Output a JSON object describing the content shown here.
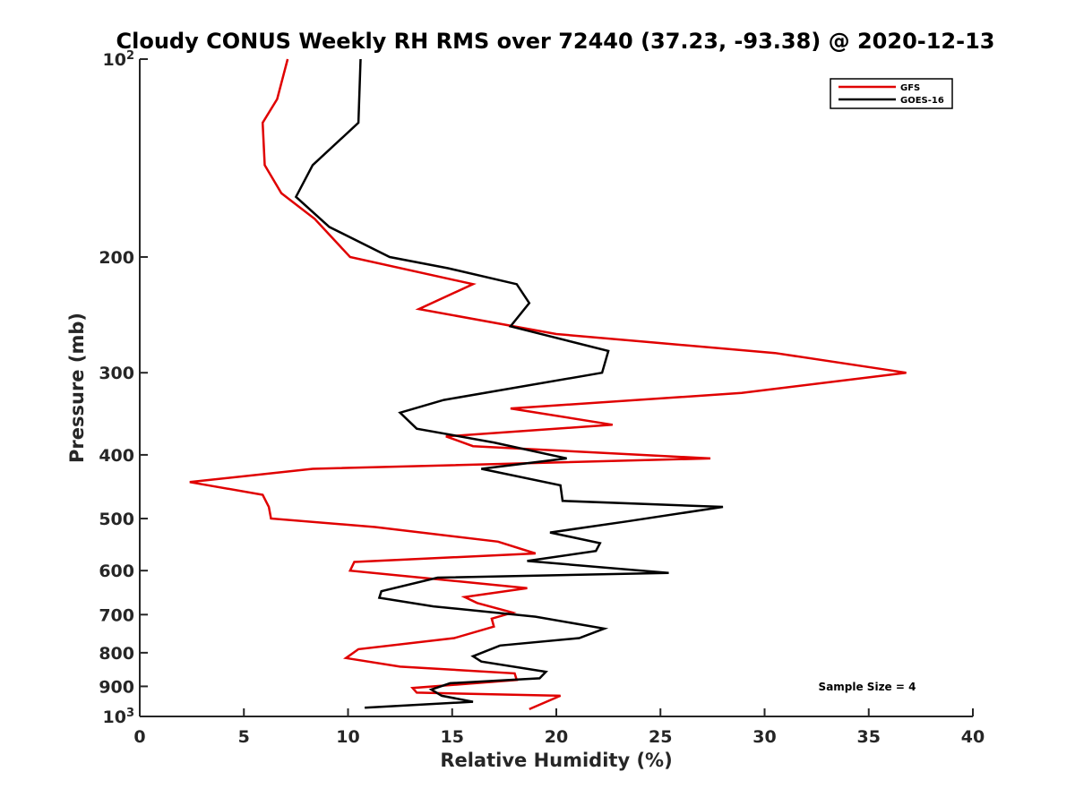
{
  "chart_data": {
    "type": "line",
    "title": "Cloudy CONUS Weekly RH RMS over 72440 (37.23, -93.38) @ 2020-12-13",
    "xlabel": "Relative Humidity (%)",
    "ylabel": "Pressure (mb)",
    "xlim": [
      0,
      40
    ],
    "ylim": [
      100,
      1000
    ],
    "y_scale": "log",
    "y_reversed": true,
    "x_ticks": [
      "0",
      "5",
      "10",
      "15",
      "20",
      "25",
      "30",
      "35",
      "40"
    ],
    "y_ticks": [
      {
        "value": 100,
        "base": "10",
        "exp": "2"
      },
      {
        "value": 200,
        "label": "200"
      },
      {
        "value": 300,
        "label": "300"
      },
      {
        "value": 400,
        "label": "400"
      },
      {
        "value": 500,
        "label": "500"
      },
      {
        "value": 600,
        "label": "600"
      },
      {
        "value": 700,
        "label": "700"
      },
      {
        "value": 800,
        "label": "800"
      },
      {
        "value": 900,
        "label": "900"
      },
      {
        "value": 1000,
        "base": "10",
        "exp": "3"
      }
    ],
    "grid": false,
    "legend_position": "top-right",
    "annotation": "Sample Size = 4",
    "series": [
      {
        "name": "GFS",
        "color": "#e00000",
        "points": [
          [
            7.1,
            100
          ],
          [
            6.6,
            115
          ],
          [
            5.9,
            125
          ],
          [
            6.0,
            145
          ],
          [
            6.8,
            160
          ],
          [
            8.4,
            175
          ],
          [
            10.1,
            200
          ],
          [
            16.0,
            220
          ],
          [
            13.4,
            240
          ],
          [
            20.0,
            262
          ],
          [
            30.5,
            280
          ],
          [
            36.8,
            300
          ],
          [
            28.9,
            322
          ],
          [
            17.8,
            340
          ],
          [
            22.7,
            360
          ],
          [
            14.7,
            375
          ],
          [
            16.0,
            388
          ],
          [
            27.4,
            405
          ],
          [
            8.3,
            420
          ],
          [
            2.4,
            440
          ],
          [
            5.9,
            460
          ],
          [
            6.2,
            480
          ],
          [
            6.3,
            500
          ],
          [
            11.3,
            515
          ],
          [
            17.2,
            542
          ],
          [
            19.0,
            565
          ],
          [
            10.3,
            582
          ],
          [
            10.1,
            600
          ],
          [
            13.5,
            615
          ],
          [
            18.6,
            638
          ],
          [
            15.6,
            658
          ],
          [
            16.2,
            672
          ],
          [
            17.9,
            695
          ],
          [
            16.9,
            710
          ],
          [
            17.0,
            730
          ],
          [
            15.1,
            760
          ],
          [
            10.5,
            790
          ],
          [
            9.9,
            815
          ],
          [
            12.5,
            840
          ],
          [
            18.0,
            860
          ],
          [
            18.1,
            880
          ],
          [
            13.1,
            905
          ],
          [
            13.3,
            920
          ],
          [
            20.2,
            930
          ],
          [
            18.7,
            975
          ]
        ]
      },
      {
        "name": "GOES-16",
        "color": "#000000",
        "points": [
          [
            10.6,
            100
          ],
          [
            10.5,
            125
          ],
          [
            8.3,
            145
          ],
          [
            7.5,
            162
          ],
          [
            9.1,
            180
          ],
          [
            12.0,
            200
          ],
          [
            14.8,
            208
          ],
          [
            18.1,
            220
          ],
          [
            18.7,
            235
          ],
          [
            17.8,
            255
          ],
          [
            22.5,
            278
          ],
          [
            22.2,
            300
          ],
          [
            14.6,
            330
          ],
          [
            12.5,
            345
          ],
          [
            13.3,
            365
          ],
          [
            17.0,
            383
          ],
          [
            20.5,
            405
          ],
          [
            16.4,
            420
          ],
          [
            20.2,
            445
          ],
          [
            20.3,
            470
          ],
          [
            28.0,
            480
          ],
          [
            23.4,
            505
          ],
          [
            19.7,
            525
          ],
          [
            22.1,
            545
          ],
          [
            21.9,
            560
          ],
          [
            18.6,
            580
          ],
          [
            25.4,
            605
          ],
          [
            14.3,
            615
          ],
          [
            11.6,
            645
          ],
          [
            11.5,
            660
          ],
          [
            14.1,
            680
          ],
          [
            19.0,
            705
          ],
          [
            22.3,
            735
          ],
          [
            21.1,
            760
          ],
          [
            17.3,
            780
          ],
          [
            16.0,
            810
          ],
          [
            16.4,
            825
          ],
          [
            19.5,
            855
          ],
          [
            19.2,
            875
          ],
          [
            14.9,
            890
          ],
          [
            14.0,
            910
          ],
          [
            14.5,
            930
          ],
          [
            16.0,
            950
          ],
          [
            10.8,
            970
          ]
        ]
      }
    ]
  }
}
